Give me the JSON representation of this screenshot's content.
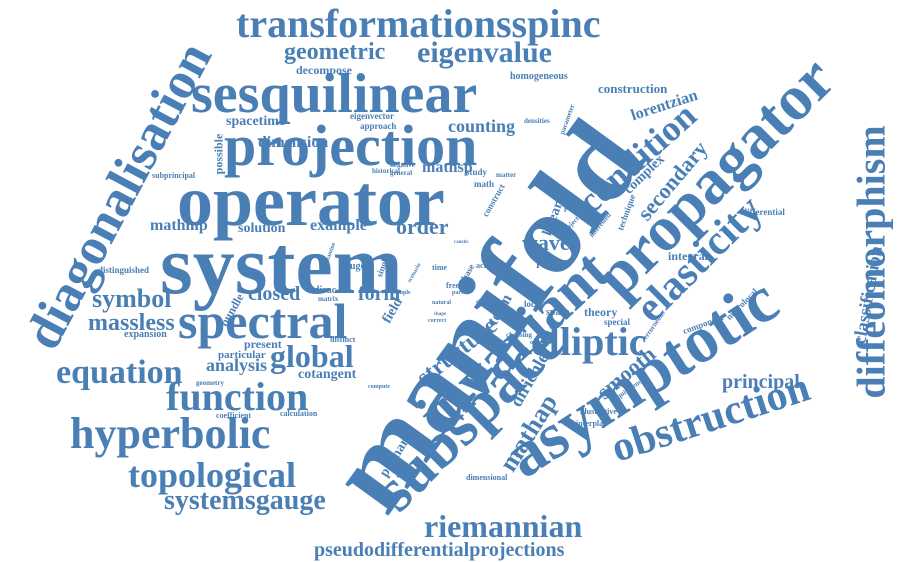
{
  "cloud": {
    "color": "#4a7fb5",
    "background": "#ffffff",
    "words": [
      "manifold",
      "system",
      "operator",
      "projection",
      "sesquilinear",
      "spectral",
      "transformationsspinc",
      "diagonalisation",
      "invariant",
      "subspace",
      "asymptotic",
      "propagator",
      "elasticity",
      "diffeomorphism",
      "condition",
      "elliptic",
      "obstruction",
      "hyperbolic",
      "function",
      "topological",
      "equation",
      "riemannian",
      "pseudodifferentialprojections",
      "systemsgauge",
      "eigenvalue",
      "geometric",
      "global",
      "symbol",
      "massless",
      "structure",
      "secondary",
      "smooth",
      "mathap",
      "dirichlet",
      "principal",
      "classification",
      "wave",
      "order",
      "closed",
      "form",
      "analysis",
      "counting",
      "dimension",
      "solution",
      "example",
      "lorentzian",
      "construction",
      "spacetime",
      "mathmp",
      "mathsp",
      "decompose",
      "homogeneous",
      "term",
      "linear",
      "primary",
      "complex",
      "integral",
      "differential",
      "theory",
      "space",
      "result",
      "field",
      "bundle",
      "gauge",
      "cotangent",
      "present",
      "particular",
      "expansion",
      "coefficient",
      "calculation",
      "distinguished",
      "subprincipal",
      "possible",
      "eigenvector",
      "approach",
      "densities",
      "parameter",
      "historical",
      "negative",
      "general",
      "study",
      "matter",
      "math",
      "construct",
      "technique",
      "definition",
      "positive",
      "subject",
      "interested",
      "microlocal",
      "component",
      "special",
      "errorneous",
      "equivalence",
      "illustrative",
      "interplay",
      "dimensional",
      "establish",
      "compute",
      "geometry",
      "distinct",
      "choosing",
      "overview",
      "local",
      "action",
      "phase",
      "thesis",
      "dirac",
      "matrix",
      "single",
      "examine",
      "scenario",
      "free",
      "part",
      "time",
      "correct",
      "natural",
      "shape",
      "caustic",
      "simple"
    ]
  }
}
